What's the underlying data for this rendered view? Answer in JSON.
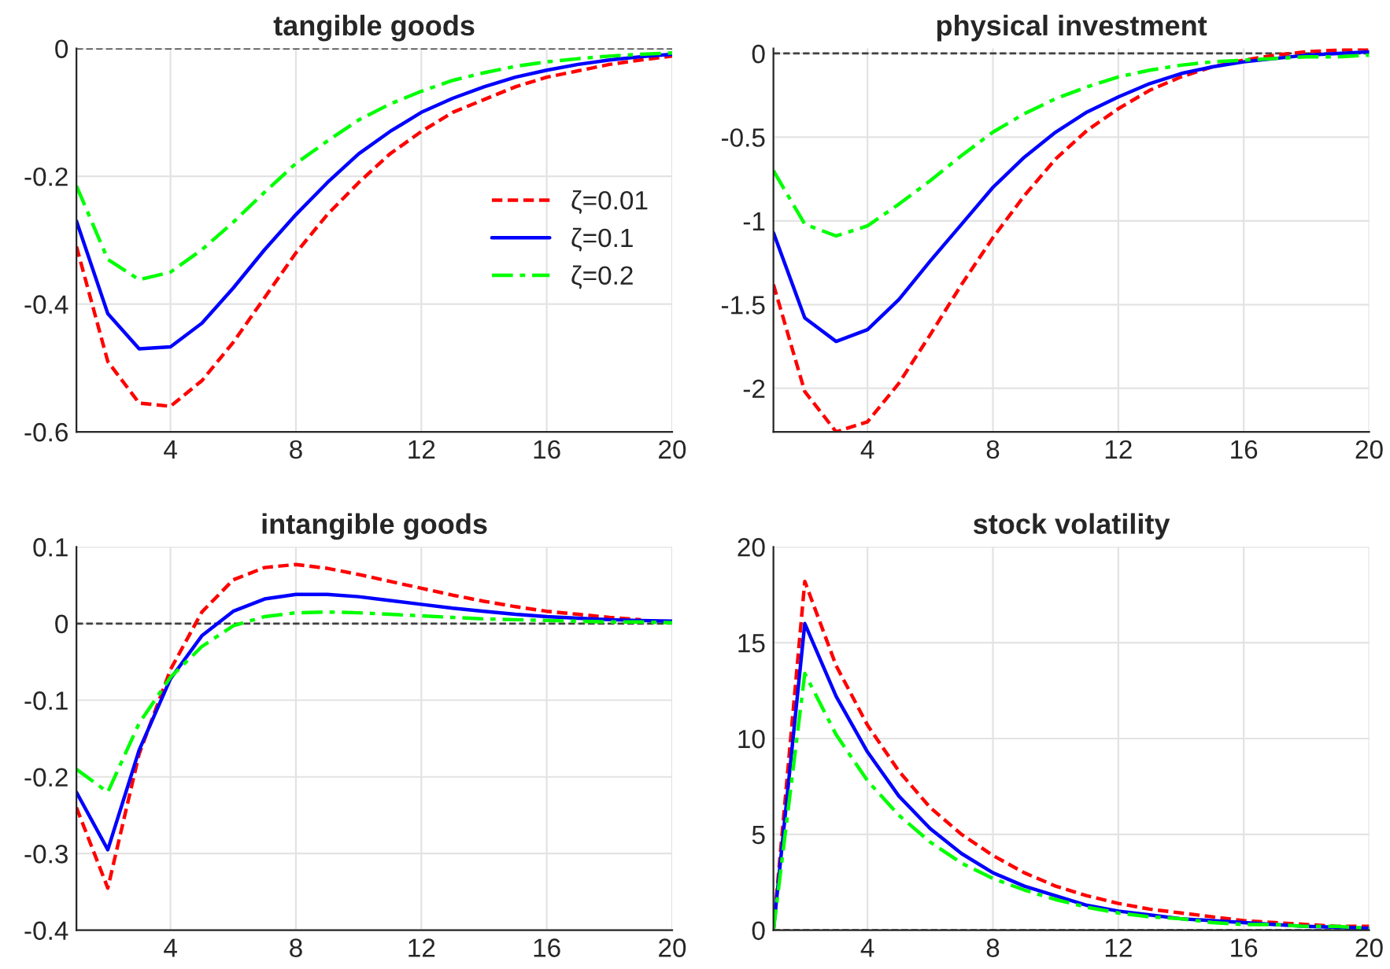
{
  "chart_data": [
    {
      "type": "line",
      "title": "tangible goods",
      "x": [
        1,
        2,
        3,
        4,
        5,
        6,
        7,
        8,
        9,
        10,
        11,
        12,
        13,
        14,
        15,
        16,
        17,
        18,
        19,
        20
      ],
      "xlim": [
        1,
        20
      ],
      "xticks": [
        4,
        8,
        12,
        16,
        20
      ],
      "ylim": [
        -0.6,
        0
      ],
      "yticks": [
        -0.6,
        -0.4,
        -0.2,
        0
      ],
      "grid": true,
      "legend": "right",
      "ref_lines": [
        {
          "axis": "y",
          "value": 0,
          "color": "#404040",
          "line_style": "dashed"
        }
      ],
      "series": [
        {
          "name": "ζ=0.01",
          "color": "#ff0000",
          "line_style": "dashed",
          "values": [
            -0.31,
            -0.49,
            -0.555,
            -0.56,
            -0.52,
            -0.46,
            -0.39,
            -0.32,
            -0.26,
            -0.21,
            -0.165,
            -0.13,
            -0.1,
            -0.08,
            -0.06,
            -0.045,
            -0.035,
            -0.025,
            -0.018,
            -0.012
          ]
        },
        {
          "name": "ζ=0.1",
          "color": "#0000ff",
          "line_style": "solid",
          "values": [
            -0.27,
            -0.415,
            -0.47,
            -0.467,
            -0.43,
            -0.375,
            -0.315,
            -0.26,
            -0.21,
            -0.165,
            -0.13,
            -0.1,
            -0.078,
            -0.06,
            -0.045,
            -0.034,
            -0.025,
            -0.018,
            -0.013,
            -0.009
          ]
        },
        {
          "name": "ζ=0.2",
          "color": "#00ff00",
          "line_style": "dashdot",
          "values": [
            -0.215,
            -0.33,
            -0.362,
            -0.35,
            -0.315,
            -0.272,
            -0.225,
            -0.18,
            -0.145,
            -0.112,
            -0.087,
            -0.067,
            -0.05,
            -0.038,
            -0.028,
            -0.021,
            -0.016,
            -0.012,
            -0.009,
            -0.007
          ]
        }
      ]
    },
    {
      "type": "line",
      "title": "physical investment",
      "x": [
        1,
        2,
        3,
        4,
        5,
        6,
        7,
        8,
        9,
        10,
        11,
        12,
        13,
        14,
        15,
        16,
        17,
        18,
        19,
        20
      ],
      "xlim": [
        1,
        20
      ],
      "xticks": [
        4,
        8,
        12,
        16,
        20
      ],
      "ylim": [
        -2.26,
        0.03
      ],
      "yticks": [
        -2,
        -1.5,
        -1,
        -0.5,
        0
      ],
      "grid": true,
      "ref_lines": [
        {
          "axis": "y",
          "value": 0,
          "color": "#404040",
          "line_style": "dashed"
        }
      ],
      "series": [
        {
          "color": "#ff0000",
          "line_style": "dashed",
          "values": [
            -1.38,
            -2.02,
            -2.26,
            -2.2,
            -1.97,
            -1.68,
            -1.38,
            -1.1,
            -0.85,
            -0.63,
            -0.46,
            -0.33,
            -0.22,
            -0.14,
            -0.08,
            -0.04,
            -0.01,
            0.01,
            0.02,
            0.03
          ]
        },
        {
          "color": "#0000ff",
          "line_style": "solid",
          "values": [
            -1.07,
            -1.58,
            -1.72,
            -1.65,
            -1.47,
            -1.24,
            -1.02,
            -0.8,
            -0.62,
            -0.47,
            -0.35,
            -0.26,
            -0.18,
            -0.12,
            -0.08,
            -0.05,
            -0.03,
            -0.01,
            0.0,
            0.01
          ]
        },
        {
          "color": "#00ff00",
          "line_style": "dashdot",
          "values": [
            -0.7,
            -1.02,
            -1.09,
            -1.03,
            -0.9,
            -0.76,
            -0.61,
            -0.47,
            -0.36,
            -0.27,
            -0.2,
            -0.14,
            -0.1,
            -0.07,
            -0.05,
            -0.04,
            -0.03,
            -0.02,
            -0.02,
            -0.01
          ]
        }
      ]
    },
    {
      "type": "line",
      "title": "intangible goods",
      "x": [
        1,
        2,
        3,
        4,
        5,
        6,
        7,
        8,
        9,
        10,
        11,
        12,
        13,
        14,
        15,
        16,
        17,
        18,
        19,
        20
      ],
      "xlim": [
        1,
        20
      ],
      "xticks": [
        4,
        8,
        12,
        16,
        20
      ],
      "ylim": [
        -0.4,
        0.1
      ],
      "yticks": [
        -0.4,
        -0.3,
        -0.2,
        -0.1,
        0,
        0.1
      ],
      "grid": true,
      "ref_lines": [
        {
          "axis": "y",
          "value": 0,
          "color": "#404040",
          "line_style": "dashed"
        }
      ],
      "series": [
        {
          "color": "#ff0000",
          "line_style": "dashed",
          "values": [
            -0.24,
            -0.345,
            -0.17,
            -0.06,
            0.015,
            0.057,
            0.073,
            0.077,
            0.072,
            0.064,
            0.055,
            0.046,
            0.037,
            0.029,
            0.022,
            0.016,
            0.012,
            0.008,
            0.005,
            null
          ]
        },
        {
          "color": "#0000ff",
          "line_style": "solid",
          "values": [
            -0.22,
            -0.295,
            -0.165,
            -0.072,
            -0.016,
            0.016,
            0.032,
            0.038,
            0.038,
            0.035,
            0.03,
            0.025,
            0.02,
            0.016,
            0.012,
            0.009,
            0.007,
            0.005,
            0.004,
            0.003
          ]
        },
        {
          "color": "#00ff00",
          "line_style": "dashdot",
          "values": [
            -0.19,
            -0.22,
            -0.13,
            -0.07,
            -0.03,
            -0.003,
            0.009,
            0.014,
            0.015,
            0.014,
            0.012,
            0.01,
            0.008,
            0.006,
            0.005,
            0.004,
            0.003,
            0.002,
            0.002,
            0.001
          ]
        }
      ]
    },
    {
      "type": "line",
      "title": "stock volatility",
      "x": [
        1,
        2,
        3,
        4,
        5,
        6,
        7,
        8,
        9,
        10,
        11,
        12,
        13,
        14,
        15,
        16,
        17,
        18,
        19,
        20
      ],
      "xlim": [
        1,
        20
      ],
      "xticks": [
        4,
        8,
        12,
        16,
        20
      ],
      "ylim": [
        0,
        20
      ],
      "yticks": [
        0,
        5,
        10,
        15,
        20
      ],
      "grid": true,
      "ref_lines": [
        {
          "axis": "y",
          "value": 0,
          "color": "#404040",
          "line_style": "dashed"
        }
      ],
      "series": [
        {
          "color": "#ff0000",
          "line_style": "dashed",
          "values": [
            0,
            18.2,
            13.8,
            10.7,
            8.3,
            6.4,
            5.0,
            3.9,
            3.0,
            2.3,
            1.8,
            1.4,
            1.1,
            0.9,
            0.7,
            0.5,
            0.4,
            0.3,
            0.2,
            0.2
          ]
        },
        {
          "color": "#0000ff",
          "line_style": "solid",
          "values": [
            0,
            16,
            12.2,
            9.3,
            7.0,
            5.3,
            4.0,
            3.0,
            2.3,
            1.8,
            1.3,
            1.0,
            0.8,
            0.6,
            0.5,
            0.4,
            0.3,
            0.2,
            null,
            0.1
          ]
        },
        {
          "color": "#00ff00",
          "line_style": "dashdot",
          "values": [
            0,
            13.4,
            10.2,
            7.8,
            6.0,
            4.6,
            3.5,
            2.7,
            2.1,
            1.6,
            1.2,
            0.9,
            0.7,
            0.6,
            0.4,
            0.3,
            0.3,
            0.2,
            0.2,
            0.1
          ]
        }
      ]
    }
  ]
}
